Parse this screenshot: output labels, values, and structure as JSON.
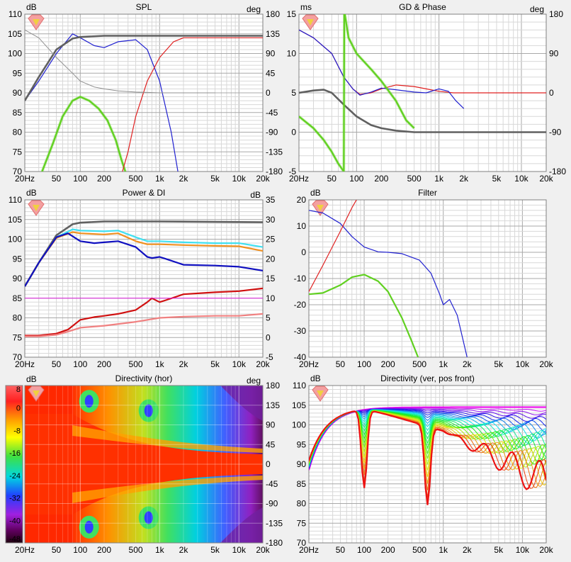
{
  "panels": {
    "spl": {
      "title": "SPL",
      "left_unit": "dB",
      "right_unit": "deg",
      "y_ticks": [
        "110",
        "105",
        "100",
        "95",
        "90",
        "85",
        "80",
        "75",
        "70"
      ],
      "r_ticks": [
        "180",
        "135",
        "90",
        "45",
        "0",
        "-45",
        "-90",
        "-135",
        "-180"
      ]
    },
    "gd": {
      "title": "GD & Phase",
      "left_unit": "ms",
      "right_unit": "deg",
      "y_ticks": [
        "15",
        "10",
        "5",
        "0",
        "-5"
      ],
      "r_ticks": [
        "180",
        "90",
        "0",
        "-90",
        "-180"
      ]
    },
    "power": {
      "title": "Power & DI",
      "left_unit": "dB",
      "right_unit": "dB",
      "y_ticks": [
        "110",
        "105",
        "100",
        "95",
        "90",
        "85",
        "80",
        "75",
        "70"
      ],
      "r_ticks": [
        "35",
        "30",
        "25",
        "20",
        "15",
        "10",
        "5",
        "0",
        "-5"
      ]
    },
    "filter": {
      "title": "Filter",
      "left_unit": "dB",
      "y_ticks": [
        "20",
        "10",
        "0",
        "-10",
        "-20",
        "-30",
        "-40"
      ]
    },
    "dir_hor": {
      "title": "Directivity (hor)",
      "left_unit": "dB",
      "right_unit": "deg",
      "scale_ticks": [
        "8",
        "0",
        "-8",
        "-16",
        "-24",
        "-32",
        "-40",
        "-48"
      ],
      "r_ticks": [
        "180",
        "135",
        "90",
        "45",
        "0",
        "-45",
        "-90",
        "-135",
        "-180"
      ]
    },
    "dir_ver": {
      "title": "Directivity (ver, pos front)",
      "left_unit": "dB",
      "y_ticks": [
        "110",
        "105",
        "100",
        "95",
        "90",
        "85",
        "80",
        "75",
        "70"
      ]
    }
  },
  "x_axis_labels": [
    "20Hz",
    "50",
    "100",
    "200",
    "500",
    "1k",
    "2k",
    "5k",
    "10k",
    "20k"
  ],
  "colors": {
    "bg": "#f0f0f0",
    "plot_bg": "#ffffff",
    "grid": "#d8d8d8",
    "grid_major": "#a8a8a8",
    "blue": "#2020d0",
    "red": "#e02020",
    "green": "#60d020",
    "dark_gray": "#606060",
    "gray": "#909090",
    "cyan": "#40e0f0",
    "orange": "#f09020",
    "navy": "#1010c0",
    "dark_red": "#d01010",
    "salmon": "#f08080",
    "magenta": "#e020e0"
  },
  "chart_data": [
    {
      "type": "line",
      "title": "SPL",
      "x_scale": "log",
      "xlim": [
        20,
        20000
      ],
      "ylim": [
        70,
        110
      ],
      "y2lim": [
        -180,
        180
      ],
      "series": [
        {
          "color": "blue",
          "x": [
            20,
            30,
            50,
            80,
            100,
            150,
            200,
            300,
            500,
            700,
            1000,
            1400,
            1700,
            2000
          ],
          "y": [
            88,
            93,
            100,
            105,
            104,
            102,
            101.5,
            103,
            103.5,
            101,
            93,
            80,
            70,
            60
          ]
        },
        {
          "color": "green",
          "x": [
            33,
            45,
            60,
            80,
            100,
            130,
            170,
            220,
            280,
            330,
            370
          ],
          "y": [
            70,
            77,
            84,
            88,
            89,
            88,
            86,
            83,
            78,
            73,
            70
          ]
        },
        {
          "color": "red",
          "x": [
            340,
            400,
            500,
            700,
            1000,
            1500,
            2000,
            5000,
            20000
          ],
          "y": [
            70,
            75,
            84,
            93,
            99,
            103,
            104,
            104,
            104
          ]
        },
        {
          "color": "dark_gray",
          "x": [
            20,
            30,
            50,
            80,
            100,
            200,
            500,
            1000,
            20000
          ],
          "y": [
            88,
            94,
            101,
            103.8,
            104.2,
            104.5,
            104.5,
            104.5,
            104.5
          ]
        },
        {
          "color": "gray",
          "x": [
            20,
            30,
            50,
            80,
            100,
            150,
            200,
            300,
            500,
            700,
            1000,
            2000,
            5000
          ],
          "y": [
            106,
            104,
            99,
            95,
            93,
            91.5,
            91,
            90.5,
            90.2,
            90.1,
            90,
            90,
            90
          ]
        }
      ]
    },
    {
      "type": "line",
      "title": "GD & Phase",
      "x_scale": "log",
      "xlim": [
        20,
        20000
      ],
      "ylim": [
        -5,
        15
      ],
      "y2lim": [
        -180,
        180
      ],
      "series": [
        {
          "color": "red",
          "x": [
            20,
            30,
            50,
            70,
            90,
            110,
            150,
            200,
            300,
            500,
            700,
            1000,
            1500,
            2000,
            5000,
            20000
          ],
          "y": [
            13,
            12,
            10,
            7,
            5.5,
            4.8,
            5,
            5.5,
            6,
            5.8,
            5.5,
            5.2,
            5,
            5,
            5,
            5
          ]
        },
        {
          "color": "blue",
          "x": [
            20,
            30,
            50,
            70,
            90,
            110,
            150,
            200,
            300,
            500,
            700,
            1000,
            1300,
            1600,
            2000
          ],
          "y": [
            13,
            12,
            10,
            7,
            5.5,
            4.7,
            5.1,
            5.6,
            5.4,
            5.1,
            5,
            5.5,
            5.2,
            4,
            3
          ]
        },
        {
          "color": "dark_gray",
          "x": [
            20,
            30,
            40,
            50,
            70,
            100,
            150,
            200,
            300,
            500,
            1000,
            20000
          ],
          "y": [
            5,
            5.3,
            5.4,
            5,
            3.5,
            2,
            0.9,
            0.5,
            0.2,
            0,
            0,
            0
          ]
        },
        {
          "color": "green",
          "x": [
            20,
            30,
            40,
            50,
            60,
            70,
            71,
            72,
            80,
            100,
            150,
            200,
            300,
            400,
            500
          ],
          "y": [
            2,
            0.5,
            -1,
            -2.5,
            -4,
            -5,
            15,
            15,
            12,
            10,
            8,
            6.5,
            4,
            1.5,
            0.5
          ]
        }
      ]
    },
    {
      "type": "line",
      "title": "Power & DI",
      "x_scale": "log",
      "xlim": [
        20,
        20000
      ],
      "ylim": [
        70,
        110
      ],
      "y2lim": [
        -5,
        35
      ],
      "series": [
        {
          "color": "dark_gray",
          "x": [
            20,
            30,
            50,
            80,
            100,
            200,
            500,
            1000,
            20000
          ],
          "y": [
            88,
            94,
            101,
            103.8,
            104.2,
            104.5,
            104.5,
            104.5,
            104.3
          ]
        },
        {
          "color": "cyan",
          "x": [
            20,
            30,
            50,
            80,
            100,
            200,
            300,
            500,
            700,
            1000,
            2000,
            5000,
            10000,
            20000
          ],
          "y": [
            88,
            94,
            100.5,
            102.5,
            102.2,
            102,
            102.2,
            100.5,
            99.5,
            99.5,
            99.2,
            99,
            99,
            98
          ]
        },
        {
          "color": "orange",
          "x": [
            20,
            30,
            50,
            80,
            100,
            200,
            300,
            500,
            700,
            1000,
            2000,
            5000,
            10000,
            20000
          ],
          "y": [
            88,
            94,
            100.3,
            101.8,
            101.5,
            101.2,
            101.5,
            99.5,
            98.7,
            98.7,
            98.5,
            98.3,
            98.2,
            97
          ]
        },
        {
          "color": "navy",
          "x": [
            20,
            30,
            50,
            70,
            100,
            150,
            200,
            300,
            500,
            700,
            800,
            1000,
            1200,
            2000,
            5000,
            10000,
            20000
          ],
          "y": [
            88,
            94,
            100.5,
            101.5,
            99.5,
            99,
            99.2,
            99.5,
            98,
            95.5,
            95.2,
            95.5,
            95,
            93.5,
            93.3,
            93,
            92
          ]
        },
        {
          "color": "dark_red",
          "x": [
            20,
            30,
            50,
            70,
            100,
            150,
            200,
            300,
            500,
            700,
            800,
            1000,
            1200,
            2000,
            5000,
            10000,
            20000
          ],
          "y": [
            75.5,
            75.5,
            76,
            77,
            79.5,
            80.2,
            80.5,
            81,
            82,
            84,
            85,
            84,
            84.5,
            86,
            86.5,
            86.8,
            87.5
          ]
        },
        {
          "color": "salmon",
          "x": [
            20,
            30,
            50,
            70,
            100,
            200,
            500,
            1000,
            2000,
            5000,
            10000,
            20000
          ],
          "y": [
            75.3,
            75.3,
            75.7,
            76.5,
            77.5,
            78,
            79,
            80,
            80.3,
            80.5,
            80.5,
            81
          ]
        },
        {
          "color": "magenta",
          "x": [
            20,
            20000
          ],
          "y": [
            85,
            85
          ]
        }
      ]
    },
    {
      "type": "line",
      "title": "Filter",
      "x_scale": "log",
      "xlim": [
        20,
        20000
      ],
      "ylim": [
        -40,
        20
      ],
      "series": [
        {
          "color": "blue",
          "x": [
            20,
            30,
            50,
            70,
            100,
            150,
            200,
            300,
            500,
            700,
            900,
            1000,
            1200,
            1500,
            2000
          ],
          "y": [
            16,
            15,
            11,
            6,
            2,
            0.2,
            0,
            -0.5,
            -3,
            -8,
            -16,
            -20,
            -18,
            -24,
            -40
          ]
        },
        {
          "color": "red",
          "x": [
            20,
            30,
            50,
            70,
            80
          ],
          "y": [
            -15,
            -5,
            8,
            17,
            20
          ]
        },
        {
          "color": "green",
          "x": [
            20,
            30,
            50,
            70,
            100,
            150,
            200,
            300,
            400,
            480
          ],
          "y": [
            -16,
            -15.5,
            -12.5,
            -9.5,
            -8.5,
            -11,
            -15,
            -25,
            -34,
            -40
          ]
        }
      ]
    },
    {
      "type": "heatmap",
      "title": "Directivity (hor)",
      "x_scale": "log",
      "xlim": [
        20,
        20000
      ],
      "ylim": [
        -180,
        180
      ],
      "zlim": [
        -48,
        8
      ]
    },
    {
      "type": "line",
      "title": "Directivity (ver, pos front)",
      "x_scale": "log",
      "xlim": [
        20,
        20000
      ],
      "ylim": [
        70,
        110
      ]
    }
  ]
}
